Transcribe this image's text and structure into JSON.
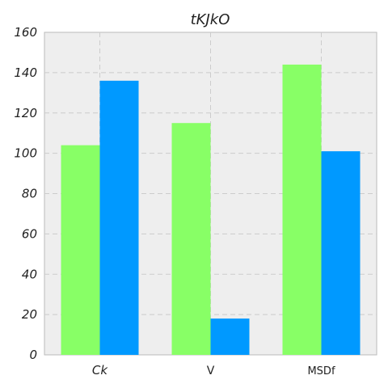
{
  "chart_data": {
    "type": "bar",
    "title": "tKJkO",
    "categories": [
      "Ck",
      "V",
      "MSDf"
    ],
    "series": [
      {
        "values": [
          104,
          115,
          144
        ],
        "color": "#88ff66"
      },
      {
        "values": [
          136,
          18,
          101
        ],
        "color": "#0099ff"
      }
    ],
    "ylim": [
      0,
      160
    ],
    "yticks": [
      "0",
      "20",
      "40",
      "60",
      "80",
      "100",
      "120",
      "140",
      "160"
    ],
    "grid": true,
    "grid_style": "dashed",
    "background": "#eeeeee",
    "legend": "none"
  }
}
